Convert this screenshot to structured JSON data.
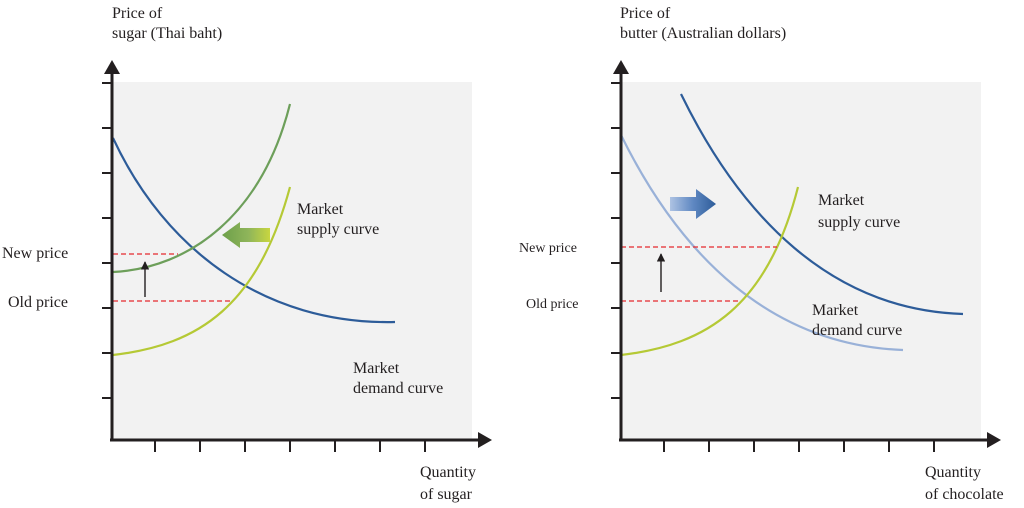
{
  "colors": {
    "panel_bg": "#f2f2f2",
    "axis": "#231f20",
    "demand": "#2d5c99",
    "demand_light": "#99b1d8",
    "supply_new_sugar": "#6d9f5a",
    "supply_yellow": "#b5c935",
    "price_guide": "#e5282e",
    "arrow_green": "#6d9f4a",
    "arrow_blue": "#2d5c99"
  },
  "left": {
    "y_axis_label_line1": "Price of",
    "y_axis_label_line2": "sugar (Thai baht)",
    "x_axis_label_line1": "Quantity",
    "x_axis_label_line2": "of sugar",
    "new_price": "New price",
    "old_price": "Old price",
    "supply_label_line1": "Market",
    "supply_label_line2": "supply curve",
    "demand_label_line1": "Market",
    "demand_label_line2": "demand curve",
    "shift_arrow": "left-arrow-green"
  },
  "right": {
    "y_axis_label_line1": "Price of",
    "y_axis_label_line2": "butter (Australian dollars)",
    "x_axis_label_line1": "Quantity",
    "x_axis_label_line2": "of chocolate",
    "new_price": "New price",
    "old_price": "Old price",
    "supply_label_line1": "Market",
    "supply_label_line2": "supply curve",
    "demand_label_line1": "Market",
    "demand_label_line2": "demand curve",
    "shift_arrow": "right-arrow-blue"
  }
}
